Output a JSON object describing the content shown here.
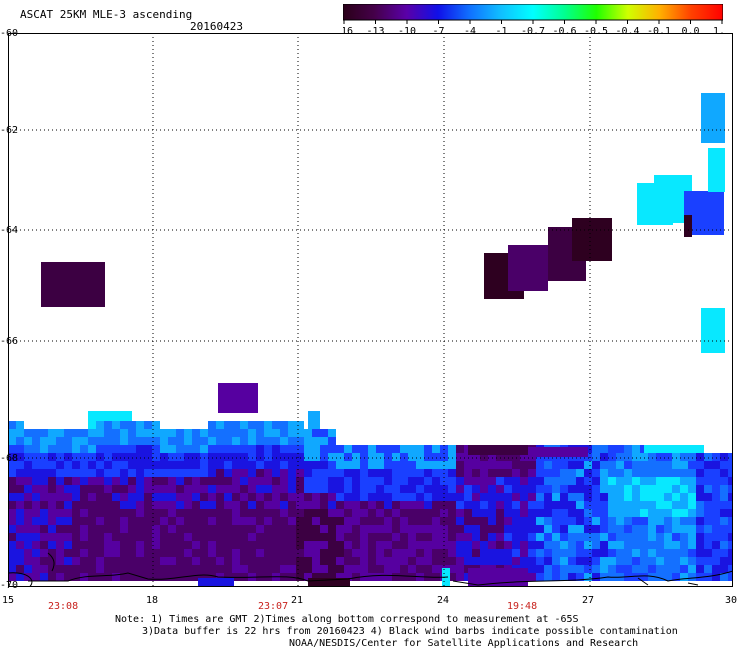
{
  "header": {
    "title": "ASCAT 25KM MLE-3 ascending",
    "date": "20160423"
  },
  "colorbar": {
    "labels": [
      "-16",
      "-13",
      "-10",
      "-7",
      "-4",
      "-1",
      "-0.7",
      "-0.6",
      "-0.5",
      "-0.4",
      "-0.1",
      "0.0",
      "1.0"
    ],
    "colors": [
      "#2a0018",
      "#45004a",
      "#5a00a8",
      "#1010e8",
      "#1070ff",
      "#10c0ff",
      "#00ffff",
      "#00ff90",
      "#20ff00",
      "#d0ff00",
      "#ffb000",
      "#ff4000",
      "#ff0000"
    ]
  },
  "axes": {
    "y_labels": [
      "-60",
      "-62",
      "-64",
      "-66",
      "-68",
      "-70"
    ],
    "x_labels": [
      "15",
      "18",
      "21",
      "24",
      "27",
      "30"
    ],
    "time_labels": [
      "23:08",
      "23:07",
      "19:48"
    ]
  },
  "notes": {
    "line1": "Note: 1) Times are GMT 2)Times along bottom correspond to measurement at -65S",
    "line2": "3)Data buffer is 22 hrs from 20160423 4) Black wind barbs indicate possible contamination",
    "line3": "NOAA/NESDIS/Center for Satellite Applications and Research"
  }
}
